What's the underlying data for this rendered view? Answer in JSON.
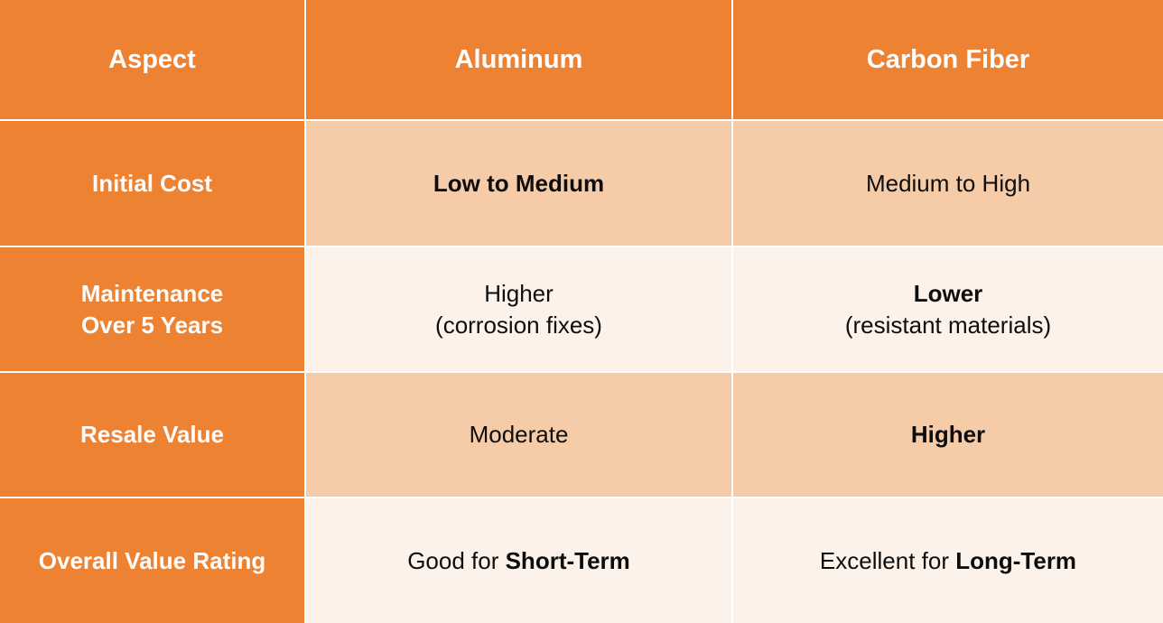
{
  "colors": {
    "accent_orange": "#ED8233",
    "row_peach": "#F6CCA8",
    "row_cream": "#FDF2E9",
    "grid_line": "#FFFFFF",
    "header_text": "#FDFDFD",
    "body_text": "#0D0D0D"
  },
  "header": {
    "aspect": "Aspect",
    "aluminum": "Aluminum",
    "carbon_fiber": "Carbon Fiber"
  },
  "rows": {
    "initial_cost": {
      "label": "Initial Cost",
      "aluminum_value": "Low to Medium",
      "carbon_value": "Medium to High"
    },
    "maintenance": {
      "label_line1": "Maintenance",
      "label_line2": "Over 5 Years",
      "aluminum_line1": "Higher",
      "aluminum_line2": "(corrosion fixes)",
      "carbon_line1": "Lower",
      "carbon_line2": "(resistant materials)"
    },
    "resale_value": {
      "label": "Resale Value",
      "aluminum_value": "Moderate",
      "carbon_value": "Higher"
    },
    "overall_value_rating": {
      "label": "Overall Value Rating",
      "aluminum_prefix": "Good for ",
      "aluminum_term": "Short-Term",
      "carbon_prefix": "Excellent for ",
      "carbon_term": "Long-Term"
    }
  }
}
